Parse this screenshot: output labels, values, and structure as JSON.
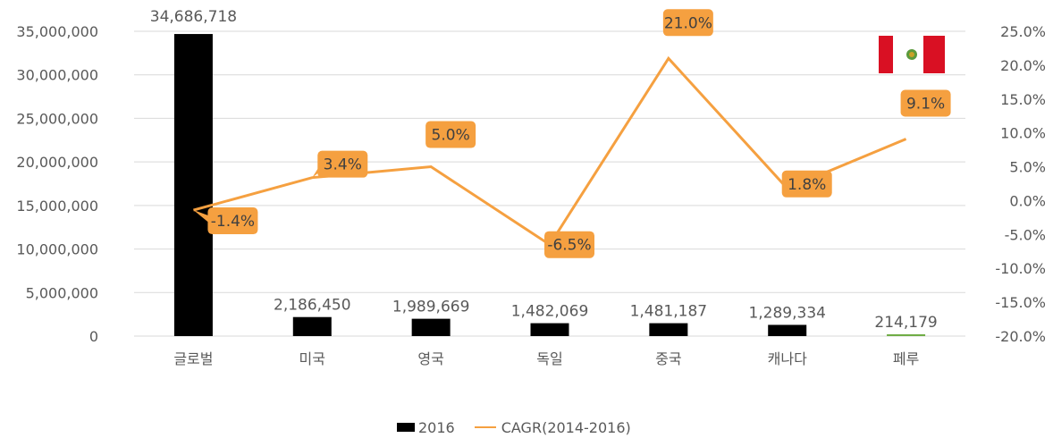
{
  "chart_data": {
    "type": "bar",
    "categories": [
      "글로벌",
      "미국",
      "영국",
      "독일",
      "중국",
      "캐나다",
      "페루"
    ],
    "series": [
      {
        "name": "2016",
        "type": "bar",
        "axis": "left",
        "values": [
          34686718,
          2186450,
          1989669,
          1482069,
          1481187,
          1289334,
          214179
        ],
        "labels": [
          "34,686,718",
          "2,186,450",
          "1,989,669",
          "1,482,069",
          "1,481,187",
          "1,289,334",
          "214,179"
        ]
      },
      {
        "name": "CAGR(2014-2016)",
        "type": "line",
        "axis": "right",
        "values": [
          -1.4,
          3.4,
          5.0,
          -6.5,
          21.0,
          1.8,
          9.1
        ],
        "labels": [
          "-1.4%",
          "3.4%",
          "5.0%",
          "-6.5%",
          "21.0%",
          "1.8%",
          "9.1%"
        ]
      }
    ],
    "y_left": {
      "range": [
        0,
        35000000
      ],
      "ticks": [
        "35,000,000",
        "30,000,000",
        "25,000,000",
        "20,000,000",
        "15,000,000",
        "10,000,000",
        "5,000,000",
        "0"
      ]
    },
    "y_right": {
      "range": [
        -20,
        25
      ],
      "ticks": [
        "25.0%",
        "20.0%",
        "15.0%",
        "10.0%",
        "5.0%",
        "0.0%",
        "-5.0%",
        "-10.0%",
        "-15.0%",
        "-20.0%"
      ]
    },
    "grid": true,
    "legend_position": "bottom",
    "colors": {
      "bar": "#000000",
      "peru_bar": "#70ad47",
      "line": "#f5a040",
      "callout": "#f5a040",
      "grid": "#d9d9d9"
    },
    "decorations": {
      "flag": "peru-flag"
    }
  }
}
